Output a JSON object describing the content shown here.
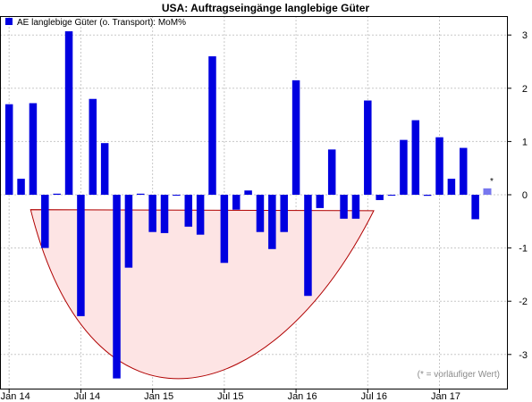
{
  "chart_data": {
    "type": "bar",
    "title": "USA: Auftragseingänge langlebige Güter",
    "legend": {
      "label": "AE langlebige Güter (o. Transport): MoM%",
      "position": "top-left"
    },
    "footnote": "(* = vorläufiger Wert)",
    "preliminary_marker": "*",
    "ylim": [
      -3.6,
      3.3
    ],
    "y_ticks": [
      3,
      2,
      1,
      0,
      -1,
      -2,
      -3
    ],
    "y_tick_labels": [
      "3",
      "2",
      "1",
      "0",
      "-1",
      "-2",
      "-3"
    ],
    "x_tick_labels": [
      "Jan 14",
      "Jul 14",
      "Jan 15",
      "Jul 15",
      "Jan 16",
      "Jul 16",
      "Jan 17"
    ],
    "x_tick_positions": [
      0,
      6,
      12,
      18,
      24,
      30,
      36
    ],
    "grid": true,
    "colors": {
      "bar": "#0000e0",
      "preliminary": "#7777ee",
      "area_fill": "#fde4e4",
      "area_stroke": "#b00000",
      "grid": "#c8c8c8"
    },
    "series": [
      {
        "values": [
          1.7,
          0.3,
          1.72,
          -1.0,
          0.02,
          3.07,
          -2.28,
          1.8,
          0.97,
          -3.45,
          -1.37,
          0.02,
          -0.7,
          -0.72,
          0.0,
          -0.6,
          -0.75,
          2.6,
          -1.28,
          -0.28,
          0.08,
          -0.7,
          -1.02,
          -0.7,
          2.15,
          -1.9,
          -0.25,
          0.85,
          -0.45,
          -0.45,
          1.77,
          -0.1,
          0.0,
          1.03,
          1.4,
          -0.02,
          1.08,
          0.3,
          0.88,
          -0.46,
          0.12
        ]
      }
    ],
    "preliminary_index": 40
  }
}
